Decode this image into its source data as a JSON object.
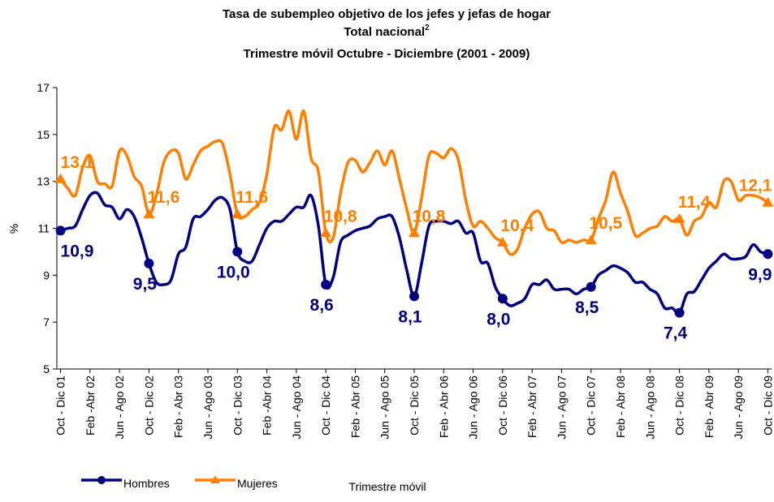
{
  "chart_data": {
    "type": "line",
    "title": "Tasa de subempleo objetivo de los jefes y jefas de hogar",
    "subtitle": "Total nacional",
    "subtitle_note": "2",
    "period": "Trimestre móvil Octubre - Diciembre (2001 - 2009)",
    "y_label": "%",
    "x_label": "Trimestre móvil",
    "ylim": [
      5,
      17
    ],
    "yticks": [
      5,
      7,
      9,
      11,
      13,
      15,
      17
    ],
    "grid": false,
    "legend": "bottom-left",
    "categories": [
      "Oct - Dic 01",
      null,
      null,
      null,
      "Feb -Abr 02",
      null,
      null,
      null,
      "Jun - Ago 02",
      null,
      null,
      null,
      "Oct - Dic 02",
      null,
      null,
      null,
      "Feb - Abr 03",
      null,
      null,
      null,
      "Jun - Ago 03",
      null,
      null,
      null,
      "Oct - Dic 03",
      null,
      null,
      null,
      "Feb -Abr 04",
      null,
      null,
      null,
      "Jun - Ago 04",
      null,
      null,
      null,
      "Oct - Dic 04",
      null,
      null,
      null,
      "Feb - Abr 05",
      null,
      null,
      null,
      "Jun - Ago 05",
      null,
      null,
      null,
      "Oct - Dic 05",
      null,
      null,
      null,
      "Feb - Abr 06",
      null,
      null,
      null,
      "Jun - Ago 06",
      null,
      null,
      null,
      "Oct - Dic 06",
      null,
      null,
      null,
      "Feb - Abr 07",
      null,
      null,
      null,
      "Jun - Ago 07",
      null,
      null,
      null,
      "Oct - Dic 07",
      null,
      null,
      null,
      "Feb - Abr 08",
      null,
      null,
      null,
      "Jun - Ago 08",
      null,
      null,
      null,
      "Oct - Dic 08",
      null,
      null,
      null,
      "Feb - Abr 09",
      null,
      null,
      null,
      "Jun - Ago 09",
      null,
      null,
      null,
      "Oct - Dic 09"
    ],
    "series": [
      {
        "name": "Hombres",
        "color": "#000080",
        "marker": "circle",
        "values": [
          10.9,
          11.0,
          11.1,
          11.8,
          12.4,
          12.5,
          12.0,
          11.9,
          11.4,
          11.8,
          11.5,
          10.6,
          9.5,
          8.7,
          8.6,
          8.8,
          9.9,
          10.2,
          11.4,
          11.5,
          11.8,
          12.2,
          12.3,
          11.8,
          10.0,
          9.6,
          9.6,
          10.3,
          11.0,
          11.3,
          11.3,
          11.6,
          11.9,
          11.9,
          12.4,
          11.1,
          8.6,
          8.9,
          10.4,
          10.7,
          10.9,
          11.0,
          11.1,
          11.4,
          11.5,
          11.5,
          10.6,
          9.2,
          8.1,
          9.5,
          11.1,
          11.3,
          11.3,
          11.2,
          11.3,
          10.8,
          10.8,
          9.6,
          9.5,
          8.5,
          8.0,
          7.7,
          7.8,
          8.0,
          8.6,
          8.6,
          8.8,
          8.4,
          8.4,
          8.4,
          8.2,
          8.4,
          8.5,
          9.0,
          9.2,
          9.4,
          9.3,
          9.1,
          8.7,
          8.7,
          8.4,
          8.2,
          7.6,
          7.6,
          7.4,
          8.2,
          8.3,
          8.8,
          9.3,
          9.6,
          9.9,
          9.7,
          9.7,
          9.8,
          10.3,
          10.0,
          9.9
        ],
        "value_labels": [
          "10,9",
          null,
          null,
          null,
          null,
          null,
          null,
          null,
          null,
          null,
          null,
          null,
          "9,5",
          null,
          null,
          null,
          null,
          null,
          null,
          null,
          null,
          null,
          null,
          null,
          "10,0",
          null,
          null,
          null,
          null,
          null,
          null,
          null,
          null,
          null,
          null,
          null,
          "8,6",
          null,
          null,
          null,
          null,
          null,
          null,
          null,
          null,
          null,
          null,
          null,
          "8,1",
          null,
          null,
          null,
          null,
          null,
          null,
          null,
          null,
          null,
          null,
          null,
          "8,0",
          null,
          null,
          null,
          null,
          null,
          null,
          null,
          null,
          null,
          null,
          null,
          "8,5",
          null,
          null,
          null,
          null,
          null,
          null,
          null,
          null,
          null,
          null,
          null,
          "7,4",
          null,
          null,
          null,
          null,
          null,
          null,
          null,
          null,
          null,
          null,
          null,
          "9,9"
        ]
      },
      {
        "name": "Mujeres",
        "color": "#ff7f00",
        "marker": "triangle",
        "values": [
          13.1,
          12.7,
          12.4,
          13.6,
          14.1,
          13.0,
          12.9,
          12.8,
          14.3,
          14.1,
          13.2,
          12.8,
          11.6,
          12.4,
          13.8,
          14.3,
          14.2,
          13.1,
          13.7,
          14.3,
          14.5,
          14.7,
          14.6,
          13.3,
          11.6,
          11.5,
          11.8,
          12.1,
          13.3,
          15.3,
          15.2,
          16.0,
          14.8,
          16.0,
          14.0,
          13.4,
          10.8,
          10.6,
          12.5,
          13.8,
          13.9,
          13.4,
          13.8,
          14.3,
          13.7,
          14.3,
          13.1,
          11.8,
          10.8,
          12.3,
          14.1,
          14.2,
          14.0,
          14.4,
          13.9,
          12.2,
          11.1,
          11.3,
          11.0,
          10.6,
          10.4,
          9.9,
          10.1,
          11.0,
          11.6,
          11.7,
          11.0,
          10.9,
          10.4,
          10.5,
          10.4,
          10.5,
          10.5,
          11.4,
          12.2,
          13.4,
          12.5,
          11.7,
          10.7,
          10.8,
          11.0,
          11.1,
          11.5,
          11.3,
          11.4,
          10.7,
          11.3,
          11.5,
          12.1,
          11.9,
          13.0,
          13.0,
          12.2,
          12.4,
          12.4,
          12.3,
          12.1
        ],
        "value_labels": [
          "13,1",
          null,
          null,
          null,
          null,
          null,
          null,
          null,
          null,
          null,
          null,
          null,
          "11,6",
          null,
          null,
          null,
          null,
          null,
          null,
          null,
          null,
          null,
          null,
          null,
          "11,6",
          null,
          null,
          null,
          null,
          null,
          null,
          null,
          null,
          null,
          null,
          null,
          "10,8",
          null,
          null,
          null,
          null,
          null,
          null,
          null,
          null,
          null,
          null,
          null,
          "10,8",
          null,
          null,
          null,
          null,
          null,
          null,
          null,
          null,
          null,
          null,
          null,
          "10,4",
          null,
          null,
          null,
          null,
          null,
          null,
          null,
          null,
          null,
          null,
          null,
          "10,5",
          null,
          null,
          null,
          null,
          null,
          null,
          null,
          null,
          null,
          null,
          null,
          "11,4",
          null,
          null,
          null,
          null,
          null,
          null,
          null,
          null,
          null,
          null,
          null,
          "12,1"
        ]
      }
    ]
  }
}
